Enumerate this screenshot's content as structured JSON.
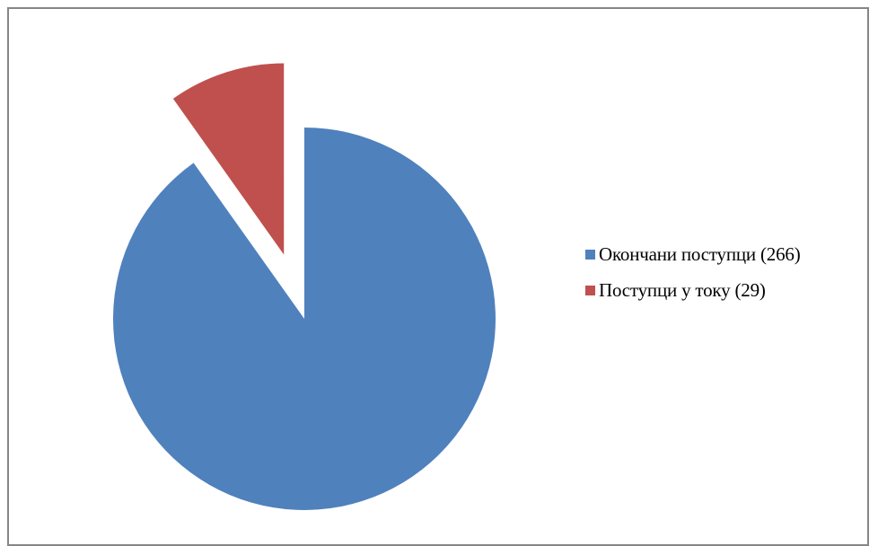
{
  "chart_data": {
    "type": "pie",
    "slices": [
      {
        "label": "Окончани поступци (266)",
        "value": 266,
        "color": "#4f81bd",
        "exploded": false
      },
      {
        "label": "Поступци у току (29)",
        "value": 29,
        "color": "#c0504d",
        "exploded": true
      }
    ],
    "legend_position": "right",
    "start_angle_deg": 0
  }
}
